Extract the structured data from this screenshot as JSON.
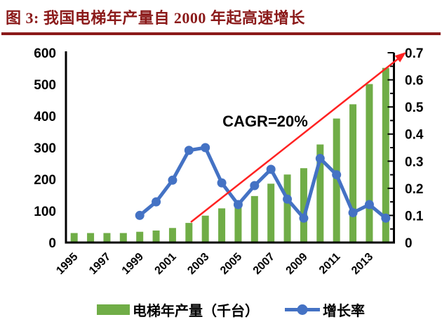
{
  "header": {
    "title": "图 3:  我国电梯年产量自 2000 年起高速增长",
    "accent_color": "#8B1A1A"
  },
  "chart_data": {
    "type": "bar+line",
    "categories": [
      "1995",
      "1996",
      "1997",
      "1998",
      "1999",
      "2000",
      "2001",
      "2002",
      "2003",
      "2004",
      "2005",
      "2006",
      "2007",
      "2008",
      "2009",
      "2010",
      "2011",
      "2012",
      "2013",
      "2014"
    ],
    "series": [
      {
        "name": "电梯年产量（千台）",
        "type": "bar",
        "axis": "left",
        "color": "#70AD47",
        "values": [
          30,
          30,
          30,
          30,
          34,
          38,
          46,
          62,
          85,
          108,
          118,
          147,
          186,
          215,
          235,
          310,
          392,
          437,
          501,
          552
        ]
      },
      {
        "name": "增长率",
        "type": "line",
        "axis": "right",
        "color": "#4472C4",
        "values": [
          null,
          null,
          null,
          null,
          0.1,
          0.15,
          0.23,
          0.34,
          0.35,
          0.22,
          0.14,
          0.21,
          0.27,
          0.16,
          0.09,
          0.31,
          0.25,
          0.11,
          0.14,
          0.09
        ]
      }
    ],
    "left_axis": {
      "min": 0,
      "max": 600,
      "step": 100,
      "tick_labels": [
        "0",
        "100",
        "200",
        "300",
        "400",
        "500",
        "600"
      ]
    },
    "right_axis": {
      "min": 0,
      "max": 0.7,
      "step": 0.1,
      "tick_labels": [
        "0",
        "0.1",
        "0.2",
        "0.3",
        "0.4",
        "0.5",
        "0.6",
        "0.7"
      ]
    },
    "x_tick_labels": [
      "1995",
      "1997",
      "1999",
      "2001",
      "2003",
      "2005",
      "2007",
      "2009",
      "2011",
      "2013"
    ],
    "annotation": {
      "text": "CAGR=20%",
      "arrow_color": "#FF2222"
    },
    "legend_position": "bottom",
    "grid": "off"
  }
}
